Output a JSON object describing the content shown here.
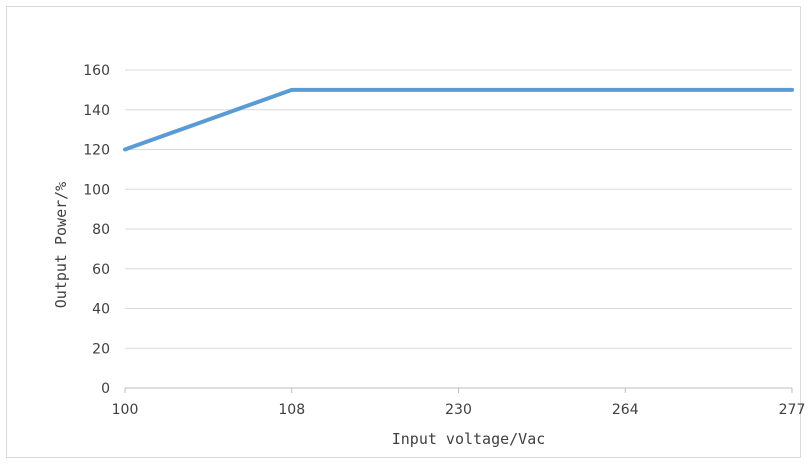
{
  "chart_data": {
    "type": "line",
    "title": "",
    "xlabel": "Input voltage/Vac",
    "ylabel": "Output Power/%",
    "x_axis_kind": "category",
    "categories": [
      "100",
      "108",
      "230",
      "264",
      "277"
    ],
    "series": [
      {
        "values": [
          120,
          150,
          150,
          150,
          150
        ],
        "color": "#5b9bd5"
      }
    ],
    "ylim": [
      0,
      160
    ],
    "yticks": [
      "0",
      "20",
      "40",
      "60",
      "80",
      "100",
      "120",
      "140",
      "160"
    ],
    "grid": true,
    "legend": "none"
  }
}
